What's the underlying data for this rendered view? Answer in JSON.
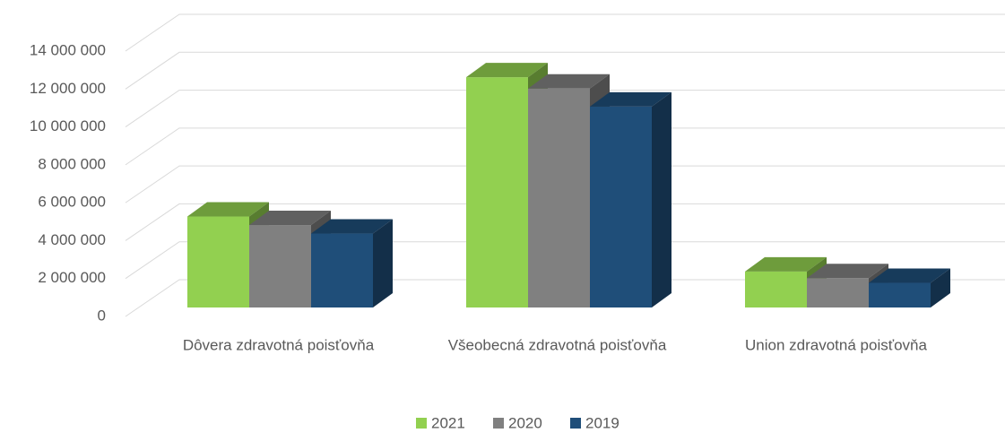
{
  "chart_data": {
    "type": "bar3d",
    "categories": [
      "Dôvera zdravotná poisťovňa",
      "Všeobecná zdravotná poisťovňa",
      "Union zdravotná poisťovňa"
    ],
    "series": [
      {
        "name": "2021",
        "color": "#92d050",
        "values": [
          4800000,
          12150000,
          1900000
        ]
      },
      {
        "name": "2020",
        "color": "#808080",
        "values": [
          4350000,
          11550000,
          1550000
        ]
      },
      {
        "name": "2019",
        "color": "#1f4e79",
        "values": [
          3900000,
          10600000,
          1300000
        ]
      }
    ],
    "ylim": [
      0,
      14000000
    ],
    "yticks": [
      0,
      {
        "value": 2000000,
        "label": "2 000 000"
      },
      {
        "value": 4000000,
        "label": "4 000 000"
      },
      {
        "value": 6000000,
        "label": "6 000 000"
      },
      {
        "value": 8000000,
        "label": "8 000 000"
      },
      {
        "value": 10000000,
        "label": "10 000 000"
      },
      {
        "value": 12000000,
        "label": "12 000 000"
      },
      {
        "value": 14000000,
        "label": "14 000 000"
      }
    ],
    "grid": true,
    "legend": "bottom"
  }
}
